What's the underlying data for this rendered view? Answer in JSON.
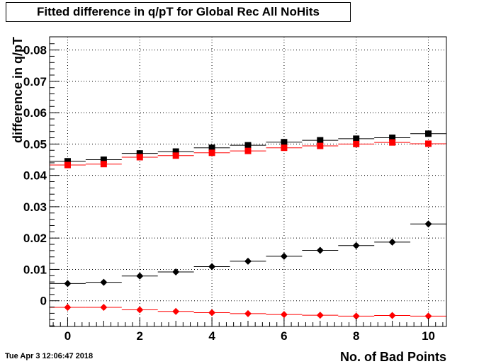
{
  "title": "Fitted difference in q/pT  for Global Rec All NoHits",
  "timestamp": "Tue Apr  3 12:06:47 2018",
  "chart_data": {
    "type": "scatter",
    "title": "Fitted difference in q/pT  for Global Rec All NoHits",
    "xlabel": "No. of Bad Points",
    "ylabel": "difference in q/pT",
    "xlim": [
      -0.5,
      10.5
    ],
    "ylim": [
      -0.0082,
      0.0842
    ],
    "grid": true,
    "x_ticks": [
      0,
      2,
      4,
      6,
      8,
      10
    ],
    "y_ticks": [
      0,
      0.01,
      0.02,
      0.03,
      0.04,
      0.05,
      0.06,
      0.07,
      0.08
    ],
    "y_tick_labels": [
      "0",
      "0.01",
      "0.02",
      "0.03",
      "0.04",
      "0.05",
      "0.06",
      "0.07",
      "0.08"
    ],
    "x": [
      0,
      1,
      2,
      3,
      4,
      5,
      6,
      7,
      8,
      9,
      10
    ],
    "series": [
      {
        "marker": "square",
        "color": "#000000",
        "values": [
          0.0445,
          0.045,
          0.047,
          0.0476,
          0.0488,
          0.0496,
          0.0506,
          0.0512,
          0.0517,
          0.052,
          0.0533
        ]
      },
      {
        "marker": "square",
        "color": "#ff0000",
        "values": [
          0.0433,
          0.0436,
          0.0458,
          0.0463,
          0.0472,
          0.0478,
          0.0488,
          0.0494,
          0.05,
          0.0505,
          0.0501
        ]
      },
      {
        "marker": "diamond",
        "color": "#000000",
        "values": [
          0.0055,
          0.0059,
          0.0079,
          0.0092,
          0.0109,
          0.0126,
          0.0142,
          0.0161,
          0.0176,
          0.0187,
          0.0245
        ]
      },
      {
        "marker": "diamond",
        "color": "#ff0000",
        "values": [
          -0.0021,
          -0.0021,
          -0.0029,
          -0.0034,
          -0.0038,
          -0.0041,
          -0.0044,
          -0.0046,
          -0.0049,
          -0.0047,
          -0.0049
        ]
      }
    ]
  }
}
